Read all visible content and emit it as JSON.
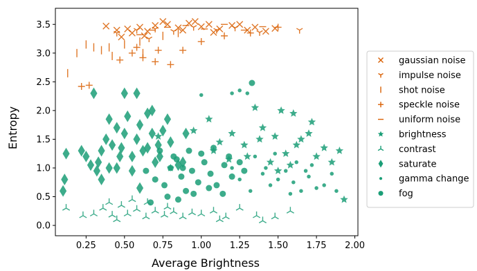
{
  "chart_data": {
    "type": "scatter",
    "xlabel": "Average Brightness",
    "ylabel": "Entropy",
    "xlim": [
      0.05,
      2.02
    ],
    "ylim": [
      -0.18,
      3.78
    ],
    "xticks": [
      0.25,
      0.5,
      0.75,
      1.0,
      1.25,
      1.5,
      1.75,
      2.0
    ],
    "xtick_labels": [
      "0.25",
      "0.50",
      "0.75",
      "1.00",
      "1.25",
      "1.50",
      "1.75",
      "2.00"
    ],
    "yticks": [
      0.0,
      0.5,
      1.0,
      1.5,
      2.0,
      2.5,
      3.0,
      3.5
    ],
    "ytick_labels": [
      "0.0",
      "0.5",
      "1.0",
      "1.5",
      "2.0",
      "2.5",
      "3.0",
      "3.5"
    ],
    "legend_position": "right",
    "colors": {
      "noise": "#d95f02",
      "other": "#1b9e77"
    },
    "series": [
      {
        "name": "gaussian noise",
        "marker": "x",
        "color": "#d95f02",
        "points": [
          [
            0.38,
            3.47
          ],
          [
            0.45,
            3.4
          ],
          [
            0.52,
            3.42
          ],
          [
            0.6,
            3.45
          ],
          [
            0.65,
            3.38
          ],
          [
            0.7,
            3.48
          ],
          [
            0.78,
            3.5
          ],
          [
            0.85,
            3.44
          ],
          [
            0.92,
            3.52
          ],
          [
            1.0,
            3.46
          ],
          [
            1.05,
            3.5
          ],
          [
            1.12,
            3.42
          ],
          [
            1.2,
            3.48
          ],
          [
            1.3,
            3.4
          ],
          [
            1.35,
            3.45
          ],
          [
            1.42,
            3.38
          ],
          [
            1.48,
            3.43
          ],
          [
            0.55,
            3.35
          ],
          [
            0.63,
            3.3
          ],
          [
            0.88,
            3.4
          ],
          [
            0.96,
            3.55
          ],
          [
            1.08,
            3.36
          ],
          [
            1.25,
            3.5
          ],
          [
            0.48,
            3.28
          ],
          [
            0.75,
            3.55
          ]
        ]
      },
      {
        "name": "impulse noise",
        "marker": "tri_down",
        "color": "#d95f02",
        "points": [
          [
            0.45,
            3.35
          ],
          [
            0.58,
            3.4
          ],
          [
            0.7,
            3.42
          ],
          [
            0.82,
            3.38
          ],
          [
            0.95,
            3.45
          ],
          [
            1.1,
            3.4
          ],
          [
            1.22,
            3.44
          ],
          [
            1.38,
            3.36
          ],
          [
            1.64,
            3.4
          ],
          [
            0.66,
            3.25
          ]
        ]
      },
      {
        "name": "shot noise",
        "marker": "vline",
        "color": "#d95f02",
        "points": [
          [
            0.13,
            2.65
          ],
          [
            0.19,
            3.0
          ],
          [
            0.25,
            3.15
          ],
          [
            0.3,
            3.1
          ],
          [
            0.35,
            3.05
          ],
          [
            0.4,
            3.1
          ],
          [
            0.5,
            3.15
          ],
          [
            0.6,
            3.2
          ],
          [
            0.75,
            3.3
          ],
          [
            0.85,
            3.35
          ],
          [
            0.62,
            3.0
          ],
          [
            0.42,
            2.95
          ]
        ]
      },
      {
        "name": "speckle noise",
        "marker": "plus",
        "color": "#d95f02",
        "points": [
          [
            0.22,
            2.42
          ],
          [
            0.27,
            2.44
          ],
          [
            0.47,
            2.88
          ],
          [
            0.55,
            3.0
          ],
          [
            0.62,
            2.92
          ],
          [
            0.7,
            2.85
          ],
          [
            0.8,
            2.8
          ],
          [
            0.88,
            3.05
          ],
          [
            1.0,
            3.2
          ],
          [
            1.15,
            3.3
          ],
          [
            1.32,
            3.35
          ],
          [
            1.5,
            3.45
          ],
          [
            0.72,
            3.05
          ],
          [
            0.58,
            3.1
          ]
        ]
      },
      {
        "name": "uniform noise",
        "marker": "hline",
        "color": "#d95f02",
        "points": [
          [
            0.68,
            3.4
          ],
          [
            0.78,
            3.45
          ],
          [
            0.9,
            3.48
          ],
          [
            1.02,
            3.42
          ],
          [
            1.15,
            3.5
          ],
          [
            1.28,
            3.4
          ],
          [
            1.4,
            3.46
          ],
          [
            0.6,
            3.32
          ]
        ]
      },
      {
        "name": "brightness",
        "marker": "star",
        "color": "#1b9e77",
        "points": [
          [
            0.72,
            1.55
          ],
          [
            0.8,
            1.0
          ],
          [
            0.95,
            1.65
          ],
          [
            1.05,
            1.85
          ],
          [
            1.12,
            1.45
          ],
          [
            1.2,
            1.6
          ],
          [
            1.28,
            1.4
          ],
          [
            1.35,
            2.05
          ],
          [
            1.4,
            1.7
          ],
          [
            1.48,
            1.55
          ],
          [
            1.55,
            1.25
          ],
          [
            1.6,
            1.95
          ],
          [
            1.65,
            1.5
          ],
          [
            1.72,
            1.8
          ],
          [
            1.8,
            1.35
          ],
          [
            1.85,
            1.1
          ],
          [
            1.9,
            1.3
          ],
          [
            1.93,
            0.45
          ],
          [
            1.3,
            1.2
          ],
          [
            1.45,
            1.1
          ],
          [
            1.52,
            2.0
          ],
          [
            1.58,
            1.05
          ],
          [
            1.7,
            1.6
          ],
          [
            1.75,
            1.2
          ],
          [
            1.08,
            1.3
          ],
          [
            1.18,
            1.15
          ],
          [
            1.38,
            1.5
          ],
          [
            1.62,
            1.4
          ],
          [
            1.5,
            0.95
          ]
        ]
      },
      {
        "name": "contrast",
        "marker": "tri_up",
        "color": "#1b9e77",
        "points": [
          [
            0.12,
            0.3
          ],
          [
            0.23,
            0.17
          ],
          [
            0.3,
            0.2
          ],
          [
            0.36,
            0.3
          ],
          [
            0.42,
            0.18
          ],
          [
            0.48,
            0.35
          ],
          [
            0.52,
            0.2
          ],
          [
            0.58,
            0.28
          ],
          [
            0.64,
            0.15
          ],
          [
            0.7,
            0.25
          ],
          [
            0.76,
            0.18
          ],
          [
            0.82,
            0.24
          ],
          [
            0.88,
            0.15
          ],
          [
            0.94,
            0.22
          ],
          [
            1.0,
            0.2
          ],
          [
            1.08,
            0.25
          ],
          [
            1.16,
            0.15
          ],
          [
            1.25,
            0.3
          ],
          [
            1.36,
            0.17
          ],
          [
            1.4,
            0.08
          ],
          [
            1.48,
            0.15
          ],
          [
            1.58,
            0.25
          ],
          [
            0.55,
            0.45
          ],
          [
            0.4,
            0.4
          ],
          [
            0.65,
            0.4
          ],
          [
            0.45,
            0.1
          ],
          [
            0.78,
            0.32
          ],
          [
            1.12,
            0.1
          ]
        ]
      },
      {
        "name": "saturate",
        "marker": "diamond",
        "color": "#1b9e77",
        "points": [
          [
            0.1,
            0.6
          ],
          [
            0.11,
            0.8
          ],
          [
            0.12,
            1.25
          ],
          [
            0.22,
            1.3
          ],
          [
            0.25,
            1.2
          ],
          [
            0.28,
            1.05
          ],
          [
            0.32,
            0.95
          ],
          [
            0.35,
            1.3
          ],
          [
            0.38,
            1.5
          ],
          [
            0.4,
            1.85
          ],
          [
            0.42,
            1.4
          ],
          [
            0.45,
            1.7
          ],
          [
            0.48,
            1.35
          ],
          [
            0.5,
            1.6
          ],
          [
            0.52,
            1.9
          ],
          [
            0.55,
            1.2
          ],
          [
            0.58,
            1.5
          ],
          [
            0.6,
            1.75
          ],
          [
            0.62,
            1.3
          ],
          [
            0.65,
            1.95
          ],
          [
            0.68,
            1.6
          ],
          [
            0.7,
            1.1
          ],
          [
            0.72,
            1.4
          ],
          [
            0.75,
            1.65
          ],
          [
            0.78,
            1.85
          ],
          [
            0.8,
            1.45
          ],
          [
            0.85,
            1.05
          ],
          [
            0.88,
            1.1
          ],
          [
            0.9,
            1.6
          ],
          [
            0.35,
            0.8
          ],
          [
            0.4,
            1.0
          ],
          [
            0.45,
            1.0
          ],
          [
            0.55,
            0.95
          ],
          [
            0.6,
            0.65
          ],
          [
            0.5,
            2.3
          ],
          [
            0.58,
            2.3
          ],
          [
            0.68,
            2.0
          ],
          [
            0.3,
            2.3
          ],
          [
            0.33,
            1.1
          ],
          [
            0.47,
            1.2
          ],
          [
            0.65,
            1.35
          ],
          [
            0.73,
            1.2
          ]
        ]
      },
      {
        "name": "gamma change",
        "marker": "point",
        "color": "#1b9e77",
        "points": [
          [
            1.0,
            2.27
          ],
          [
            1.2,
            2.3
          ],
          [
            1.25,
            2.35
          ],
          [
            1.3,
            2.3
          ],
          [
            1.32,
            0.6
          ],
          [
            1.4,
            0.9
          ],
          [
            1.45,
            0.7
          ],
          [
            1.5,
            0.8
          ],
          [
            1.55,
            0.95
          ],
          [
            1.6,
            0.75
          ],
          [
            1.65,
            0.6
          ],
          [
            1.7,
            0.85
          ],
          [
            1.75,
            0.65
          ],
          [
            1.8,
            0.7
          ],
          [
            1.85,
            0.9
          ],
          [
            1.88,
            0.6
          ],
          [
            1.2,
            1.0
          ],
          [
            1.25,
            0.8
          ],
          [
            1.35,
            1.2
          ],
          [
            1.42,
            1.0
          ],
          [
            1.48,
            1.25
          ],
          [
            1.58,
            0.55
          ],
          [
            1.62,
            1.1
          ],
          [
            1.68,
            0.95
          ],
          [
            1.72,
            1.05
          ]
        ]
      },
      {
        "name": "fog",
        "marker": "circle",
        "color": "#1b9e77",
        "points": [
          [
            0.64,
            0.95
          ],
          [
            0.67,
            0.4
          ],
          [
            0.7,
            0.8
          ],
          [
            0.73,
            1.3
          ],
          [
            0.76,
            0.7
          ],
          [
            0.8,
            1.0
          ],
          [
            0.84,
            1.15
          ],
          [
            0.87,
            0.85
          ],
          [
            0.9,
            0.6
          ],
          [
            0.94,
            0.95
          ],
          [
            0.98,
            0.75
          ],
          [
            1.02,
            1.1
          ],
          [
            1.06,
            0.9
          ],
          [
            1.1,
            0.7
          ],
          [
            1.15,
            1.05
          ],
          [
            1.2,
            0.85
          ],
          [
            1.0,
            1.25
          ],
          [
            1.08,
            1.35
          ],
          [
            0.78,
            0.5
          ],
          [
            0.85,
            0.45
          ],
          [
            0.95,
            0.55
          ],
          [
            1.05,
            0.65
          ],
          [
            1.14,
            0.55
          ],
          [
            0.82,
            1.2
          ],
          [
            0.92,
            1.3
          ],
          [
            1.18,
            1.2
          ],
          [
            1.33,
            2.48
          ],
          [
            1.28,
            0.95
          ],
          [
            1.25,
            1.1
          ],
          [
            0.88,
            1.0
          ]
        ]
      }
    ]
  }
}
